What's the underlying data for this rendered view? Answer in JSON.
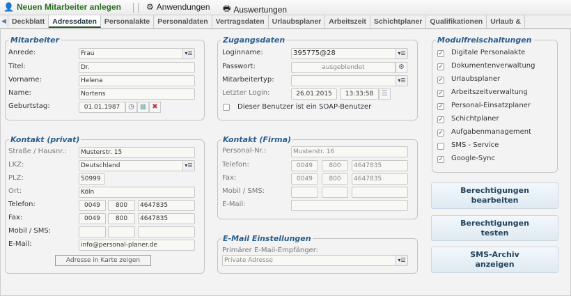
{
  "toolbar": {
    "new_employee": "Neuen Mitarbeiter anlegen",
    "applications": "Anwendungen",
    "reports": "Auswertungen"
  },
  "tabs": [
    "Deckblatt",
    "Adressdaten",
    "Personalakte",
    "Personaldaten",
    "Vertragsdaten",
    "Urlaubsplaner",
    "Arbeitszeit",
    "Schichtplaner",
    "Qualifikationen",
    "Urlaub &"
  ],
  "active_tab": "Adressdaten",
  "mitarbeiter": {
    "legend": "Mitarbeiter",
    "anrede_label": "Anrede:",
    "anrede": "Frau",
    "titel_label": "Titel:",
    "titel": "Dr.",
    "vorname_label": "Vorname:",
    "vorname": "Helena",
    "name_label": "Name:",
    "name": "Nortens",
    "geburtstag_label": "Geburtstag:",
    "geburtstag": "01.01.1987"
  },
  "zugang": {
    "legend": "Zugangsdaten",
    "login_label": "Loginname:",
    "login": "395775@28",
    "pw_label": "Passwort:",
    "pw": "ausgeblendet",
    "typ_label": "Mitarbeitertyp:",
    "typ": "",
    "last_label": "Letzter Login:",
    "last_date": "26.01.2015",
    "last_time": "13:33:58",
    "soap_label": "Dieser Benutzer ist ein SOAP-Benutzer",
    "soap": false
  },
  "module": {
    "legend": "Modulfreischaltungen",
    "items": [
      {
        "label": "Digitale Personalakte",
        "checked": true
      },
      {
        "label": "Dokumentenverwaltung",
        "checked": true
      },
      {
        "label": "Urlaubsplaner",
        "checked": true
      },
      {
        "label": "Arbeitszeitverwaltung",
        "checked": true
      },
      {
        "label": "Personal-Einsatzplaner",
        "checked": true
      },
      {
        "label": "Schichtplaner",
        "checked": true
      },
      {
        "label": "Aufgabenmanagement",
        "checked": true
      },
      {
        "label": "SMS - Service",
        "checked": false
      },
      {
        "label": "Google-Sync",
        "checked": true
      }
    ]
  },
  "privat": {
    "legend": "Kontakt (privat)",
    "strasse_label": "Straße / Hausnr.:",
    "strasse": "Musterstr. 15",
    "lkz_label": "LKZ:",
    "lkz": "Deutschland",
    "plz_label": "PLZ:",
    "plz": "50999",
    "ort_label": "Ort:",
    "ort": "Köln",
    "tel_label": "Telefon:",
    "tel": [
      "0049",
      "800",
      "4647835"
    ],
    "fax_label": "Fax:",
    "fax": [
      "0049",
      "800",
      "4647835"
    ],
    "mobil_label": "Mobil / SMS:",
    "mobil": [
      "",
      "",
      ""
    ],
    "email_label": "E-Mail:",
    "email": "info@personal-planer.de",
    "map_button": "Adresse in Karte zeigen"
  },
  "firma": {
    "legend": "Kontakt (Firma)",
    "pnr_label": "Personal-Nr.:",
    "pnr": "Musterstr. 16",
    "tel_label": "Telefon:",
    "tel": [
      "0049",
      "800",
      "4647835"
    ],
    "fax_label": "Fax:",
    "fax": [
      "0049",
      "800",
      "4647835"
    ],
    "mobil_label": "Mobil / SMS:",
    "mobil": [
      "",
      "",
      ""
    ],
    "email_label": "E-Mail:",
    "email": ""
  },
  "email_settings": {
    "legend": "E-Mail Einstellungen",
    "primary_label": "Primärer E-Mail-Empfänger:",
    "primary": "Private Adresse"
  },
  "buttons": {
    "perm_edit": "Berechtigungen\nbearbeiten",
    "perm_test": "Berechtigungen\ntesten",
    "sms_archive": "SMS-Archiv\nanzeigen"
  },
  "colors": {
    "accent_green": "#2a6e1e",
    "legend_blue": "#2b5d8c"
  }
}
